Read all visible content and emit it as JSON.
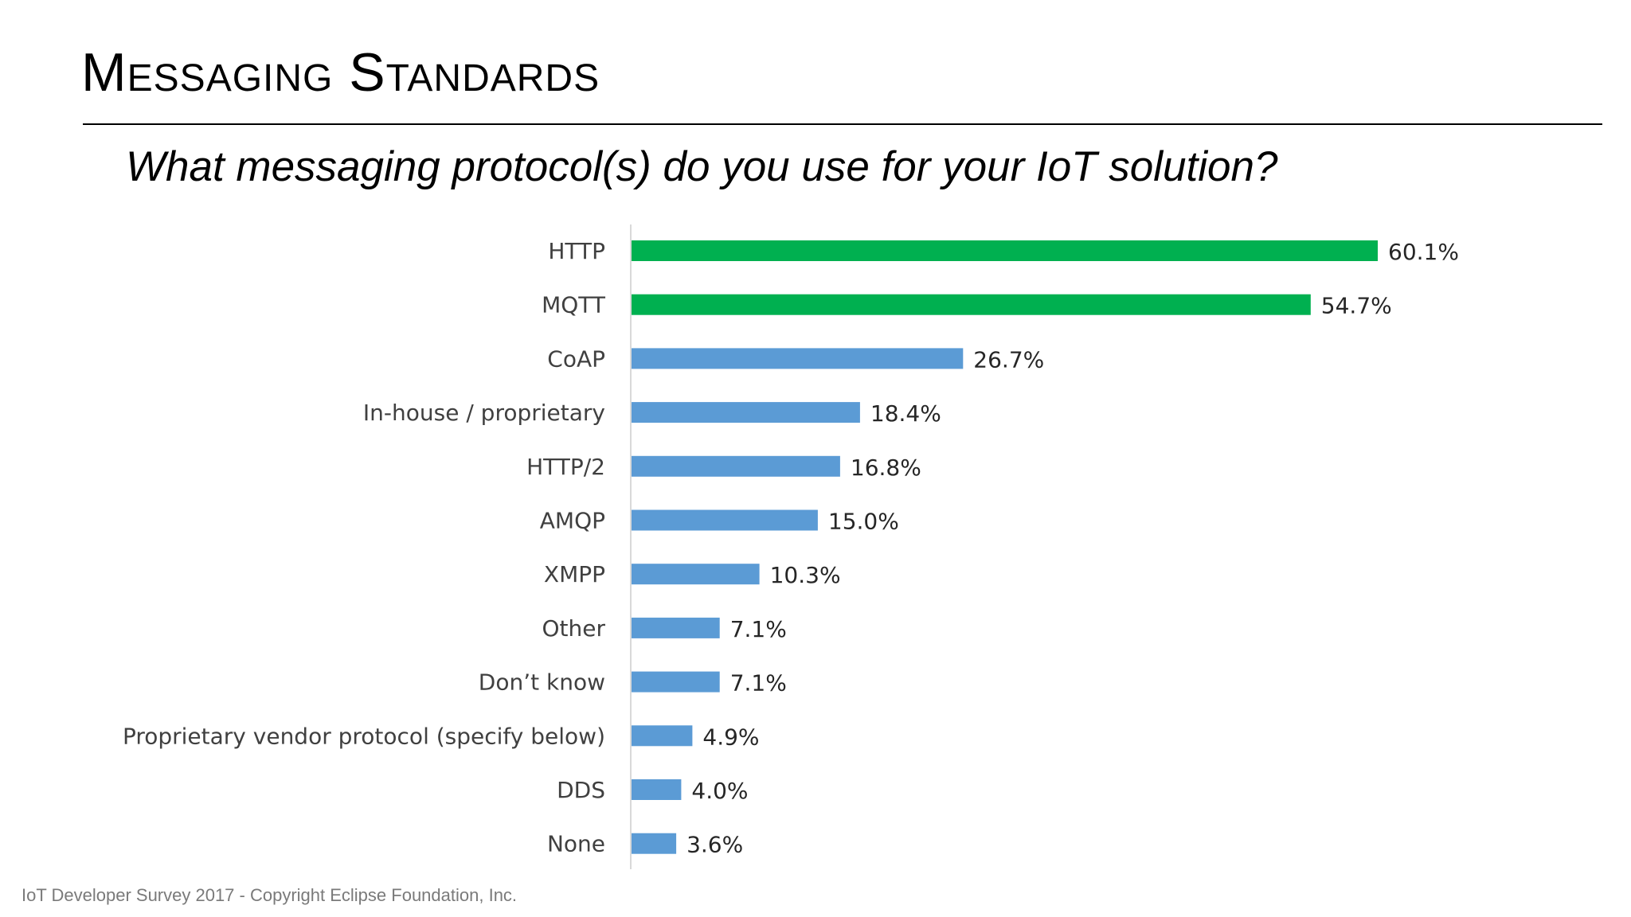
{
  "slide": {
    "title": "Messaging Standards",
    "question": "What messaging protocol(s) do you use for your IoT solution?",
    "footer": "IoT Developer Survey 2017 - Copyright Eclipse Foundation, Inc."
  },
  "colors": {
    "highlight": "#00b050",
    "default": "#5b9bd5",
    "axis": "#d9d9d9"
  },
  "chart_data": {
    "type": "bar",
    "orientation": "horizontal",
    "title": "",
    "xlabel": "",
    "ylabel": "",
    "xlim": [
      0,
      60.1
    ],
    "grid": false,
    "legend": "none",
    "categories": [
      "HTTP",
      "MQTT",
      "CoAP",
      "In-house / proprietary",
      "HTTP/2",
      "AMQP",
      "XMPP",
      "Other",
      "Don’t know",
      "Proprietary vendor protocol (specify below)",
      "DDS",
      "None"
    ],
    "values": [
      60.1,
      54.7,
      26.7,
      18.4,
      16.8,
      15.0,
      10.3,
      7.1,
      7.1,
      4.9,
      4.0,
      3.6
    ],
    "data_labels": [
      "60.1%",
      "54.7%",
      "26.7%",
      "18.4%",
      "16.8%",
      "15.0%",
      "10.3%",
      "7.1%",
      "7.1%",
      "4.9%",
      "4.0%",
      "3.6%"
    ],
    "highlighted": [
      true,
      true,
      false,
      false,
      false,
      false,
      false,
      false,
      false,
      false,
      false,
      false
    ]
  }
}
